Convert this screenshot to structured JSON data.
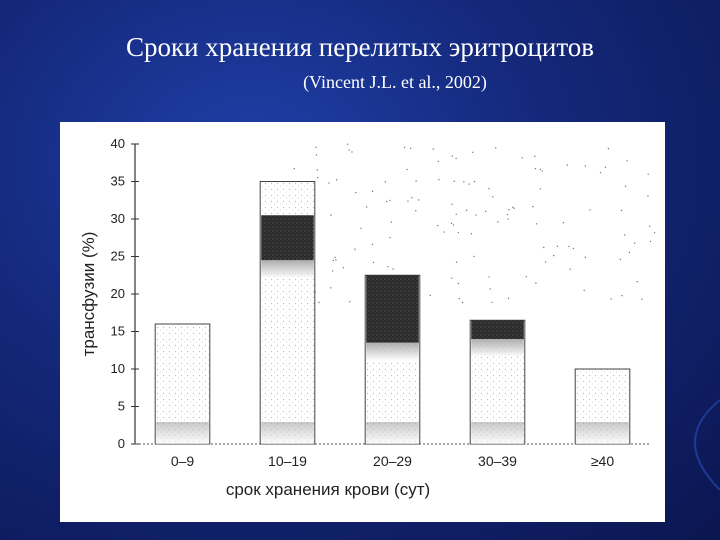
{
  "slide": {
    "title": "Сроки хранения перелитых эритроцитов",
    "subtitle": "(Vincent J.L. et al., 2002)"
  },
  "colors": {
    "background": "#14287a",
    "title_text": "#ffffff",
    "bar_outline": "#333333",
    "bar_dark_fill": "#2a2a2a",
    "bar_light_fill": "#ffffff"
  },
  "chart_data": {
    "type": "bar",
    "title": "",
    "xlabel": "срок хранения крови (сут)",
    "ylabel": "трансфузии (%)",
    "categories": [
      "0–9",
      "10–19",
      "20–29",
      "30–39",
      "≥40"
    ],
    "values": [
      16,
      35,
      22.5,
      16.5,
      10
    ],
    "dark_band_upper": [
      null,
      30.5,
      22.5,
      16.5,
      null
    ],
    "dark_band_lower": [
      null,
      24.5,
      13.5,
      14,
      null
    ],
    "ylim": [
      0,
      40
    ],
    "yticks": [
      "0",
      "5",
      "10",
      "15",
      "20",
      "25",
      "30",
      "35",
      "40"
    ],
    "grid": false,
    "legend": "none"
  }
}
